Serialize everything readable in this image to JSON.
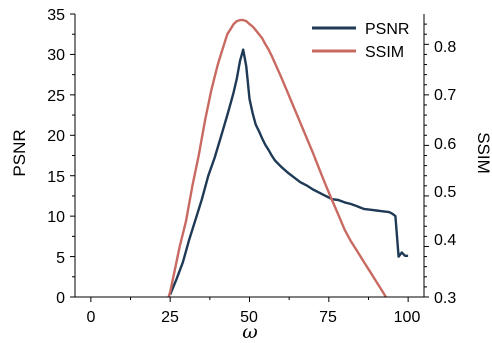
{
  "chart_data": {
    "type": "line",
    "xlabel": "ω",
    "ylabel": "PSNR",
    "y2label": "SSIM",
    "xlim": [
      -5,
      105
    ],
    "ylim": [
      0,
      35
    ],
    "y2lim": [
      0.3,
      0.86
    ],
    "xticks": [
      0,
      25,
      50,
      75,
      100
    ],
    "yticks": [
      0,
      5,
      10,
      15,
      20,
      25,
      30,
      35
    ],
    "y2ticks": [
      0.3,
      0.4,
      0.5,
      0.6,
      0.7,
      0.8
    ],
    "grid": false,
    "legend_position": "top-right",
    "series": [
      {
        "name": "PSNR",
        "color": "#1f3a56",
        "axis": "left",
        "x": [
          25,
          27,
          29,
          31,
          33,
          35,
          37,
          39,
          41,
          43,
          44,
          45,
          46,
          47,
          48,
          49,
          50,
          51,
          52,
          53,
          54,
          55,
          56,
          57,
          58,
          60,
          62,
          64,
          66,
          68,
          70,
          72,
          74,
          75,
          76,
          78,
          80,
          82,
          84,
          86,
          88,
          90,
          92,
          94,
          95,
          96,
          97,
          98,
          99,
          100
        ],
        "y": [
          0.3,
          2.2,
          4.3,
          7.1,
          9.6,
          12.1,
          15.0,
          17.2,
          19.8,
          22.5,
          23.9,
          25.3,
          27.0,
          29.2,
          30.6,
          28.5,
          24.5,
          22.7,
          21.3,
          20.5,
          19.6,
          18.8,
          18.2,
          17.5,
          16.9,
          16.1,
          15.4,
          14.8,
          14.2,
          13.8,
          13.3,
          12.9,
          12.5,
          12.3,
          12.1,
          12.0,
          11.7,
          11.5,
          11.2,
          10.9,
          10.8,
          10.7,
          10.6,
          10.5,
          10.3,
          10.0,
          5.0,
          5.5,
          5.1,
          5.1
        ]
      },
      {
        "name": "SSIM",
        "color": "#c96a62",
        "axis": "right",
        "x": [
          24.5,
          25,
          26,
          28,
          30,
          32,
          34,
          36,
          38,
          40,
          41,
          42,
          43,
          44,
          45,
          46,
          47,
          48,
          49,
          50,
          51,
          52,
          53,
          54,
          55,
          56,
          57,
          58,
          60,
          62,
          64,
          66,
          68,
          70,
          72,
          74,
          76,
          78,
          80,
          82,
          84,
          86,
          88,
          90,
          92,
          93
        ],
        "y": [
          0.3,
          0.31,
          0.34,
          0.4,
          0.45,
          0.52,
          0.58,
          0.65,
          0.71,
          0.76,
          0.78,
          0.8,
          0.82,
          0.83,
          0.84,
          0.846,
          0.848,
          0.848,
          0.846,
          0.84,
          0.835,
          0.828,
          0.82,
          0.812,
          0.8,
          0.79,
          0.777,
          0.763,
          0.735,
          0.705,
          0.675,
          0.645,
          0.615,
          0.585,
          0.553,
          0.522,
          0.492,
          0.463,
          0.433,
          0.41,
          0.39,
          0.37,
          0.35,
          0.33,
          0.31,
          0.3
        ]
      }
    ]
  }
}
